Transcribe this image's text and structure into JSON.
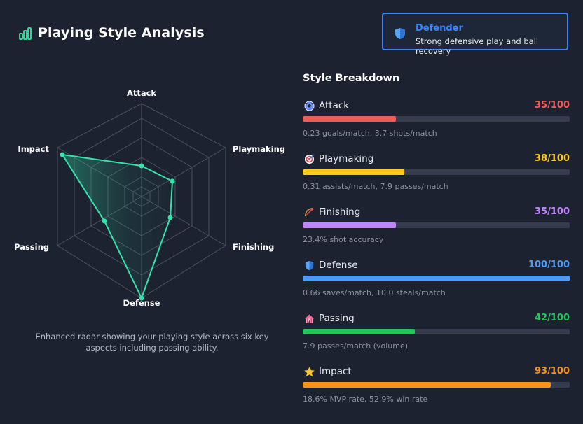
{
  "header": {
    "title": "Playing Style Analysis",
    "icon": "bar-chart-icon",
    "accent": "#34d399"
  },
  "badge": {
    "title": "Defender",
    "description": "Strong defensive play and ball recovery",
    "icon": "shield-icon",
    "color": "#3b82f6"
  },
  "radar": {
    "caption": "Enhanced radar showing your playing style across six key aspects including passing ability.",
    "color": "#34e3a9"
  },
  "breakdown": {
    "title": "Style Breakdown",
    "stats": [
      {
        "label": "Attack",
        "score": "35/100",
        "value": 35,
        "detail": "0.23 goals/match, 3.7 shots/match",
        "color": "#f05c5c",
        "icon": "soccer-ball-icon"
      },
      {
        "label": "Playmaking",
        "score": "38/100",
        "value": 38,
        "detail": "0.31 assists/match, 7.9 passes/match",
        "color": "#facc15",
        "icon": "target-icon"
      },
      {
        "label": "Finishing",
        "score": "35/100",
        "value": 35,
        "detail": "23.4% shot accuracy",
        "color": "#c084fc",
        "icon": "bow-arrow-icon"
      },
      {
        "label": "Defense",
        "score": "100/100",
        "value": 100,
        "detail": "0.66 saves/match, 10.0 steals/match",
        "color": "#4f9bf4",
        "icon": "shield-icon"
      },
      {
        "label": "Passing",
        "score": "42/100",
        "value": 42,
        "detail": "7.9 passes/match (volume)",
        "color": "#22c55e",
        "icon": "circus-tent-icon"
      },
      {
        "label": "Impact",
        "score": "93/100",
        "value": 93,
        "detail": "18.6% MVP rate, 52.9% win rate",
        "color": "#f7931a",
        "icon": "star-icon"
      }
    ]
  }
}
